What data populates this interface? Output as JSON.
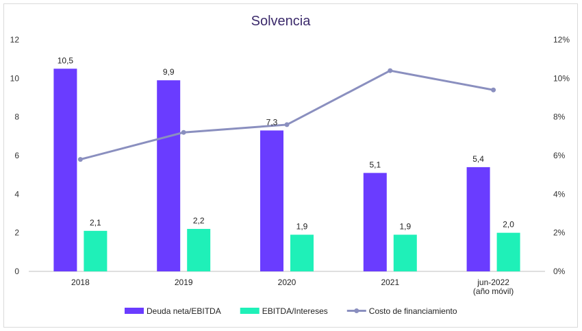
{
  "chart_data": {
    "type": "bar",
    "title": "Solvencia",
    "categories": [
      "2018",
      "2019",
      "2020",
      "2021",
      "jun-2022\n(año móvil)"
    ],
    "series": [
      {
        "name": "Deuda neta/EBITDA",
        "kind": "bar",
        "axis": "left",
        "color": "#6a3cff",
        "values": [
          10.5,
          9.9,
          7.3,
          5.1,
          5.4
        ],
        "labels": [
          "10,5",
          "9,9",
          "7,3",
          "5,1",
          "5,4"
        ]
      },
      {
        "name": "EBITDA/Intereses",
        "kind": "bar",
        "axis": "left",
        "color": "#1ff0b8",
        "values": [
          2.1,
          2.2,
          1.9,
          1.9,
          2.0
        ],
        "labels": [
          "2,1",
          "2,2",
          "1,9",
          "1,9",
          "2,0"
        ]
      },
      {
        "name": "Costo de financiamiento",
        "kind": "line",
        "axis": "right",
        "color": "#8a8fbf",
        "values": [
          5.8,
          7.2,
          7.6,
          10.4,
          9.4
        ]
      }
    ],
    "y_left": {
      "min": 0,
      "max": 12,
      "ticks": [
        "0",
        "2",
        "4",
        "6",
        "8",
        "10",
        "12"
      ]
    },
    "y_right": {
      "min": 0,
      "max": 12,
      "ticks": [
        "0%",
        "2%",
        "4%",
        "6%",
        "8%",
        "10%",
        "12%"
      ]
    },
    "grid": false,
    "legend_position": "bottom"
  }
}
